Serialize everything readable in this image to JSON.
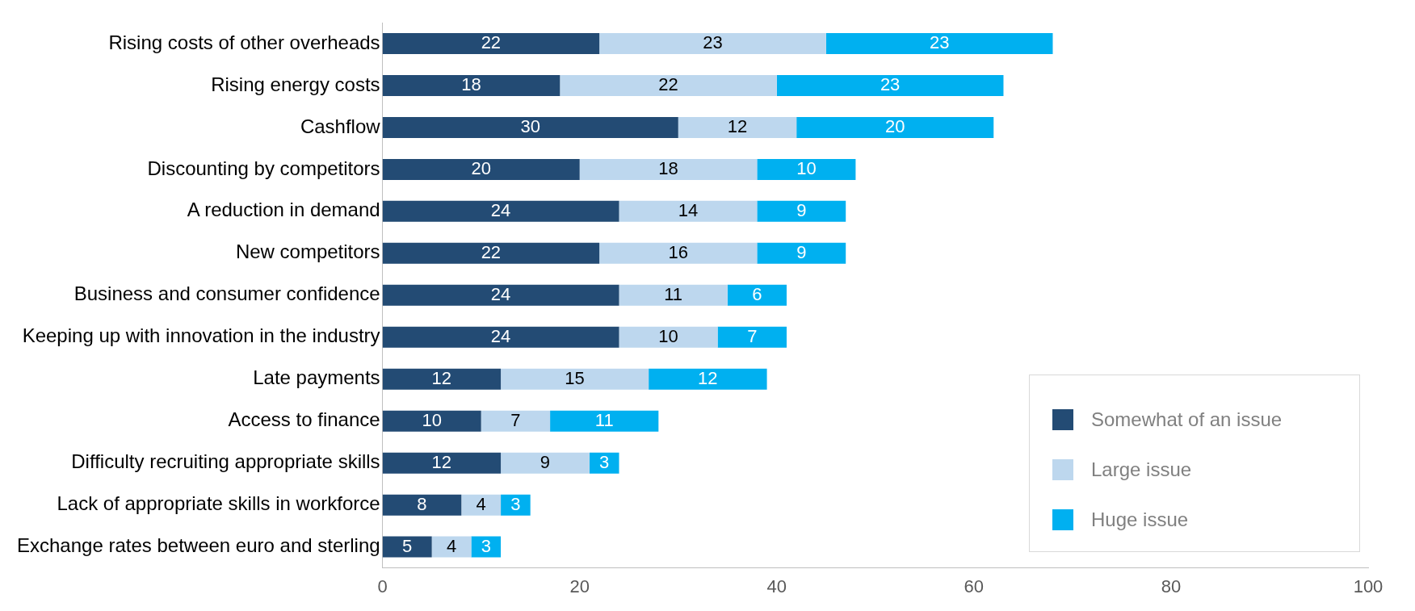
{
  "chart_data": {
    "type": "bar",
    "orientation": "horizontal",
    "stacked": true,
    "categories": [
      "Rising costs of other overheads",
      "Rising energy costs",
      "Cashflow",
      "Discounting by competitors",
      "A reduction in demand",
      "New competitors",
      "Business and consumer confidence",
      "Keeping up with innovation in the industry",
      "Late payments",
      "Access to finance",
      "Difficulty recruiting appropriate skills",
      "Lack of appropriate skills in workforce",
      "Exchange rates between euro and sterling"
    ],
    "series": [
      {
        "name": "Somewhat of an issue",
        "color": "#234b74",
        "values": [
          22,
          18,
          30,
          20,
          24,
          22,
          24,
          24,
          12,
          10,
          12,
          8,
          5
        ]
      },
      {
        "name": "Large issue",
        "color": "#bdd7ee",
        "values": [
          23,
          22,
          12,
          18,
          14,
          16,
          11,
          10,
          15,
          7,
          9,
          4,
          4
        ]
      },
      {
        "name": "Huge issue",
        "color": "#00b0f0",
        "values": [
          23,
          23,
          20,
          10,
          9,
          9,
          6,
          7,
          12,
          11,
          3,
          3,
          3
        ]
      }
    ],
    "xlim": [
      0,
      100
    ],
    "xticks": [
      0,
      20,
      40,
      60,
      80,
      100
    ],
    "grid": false,
    "legend": "bottom right",
    "data_labels": true
  }
}
